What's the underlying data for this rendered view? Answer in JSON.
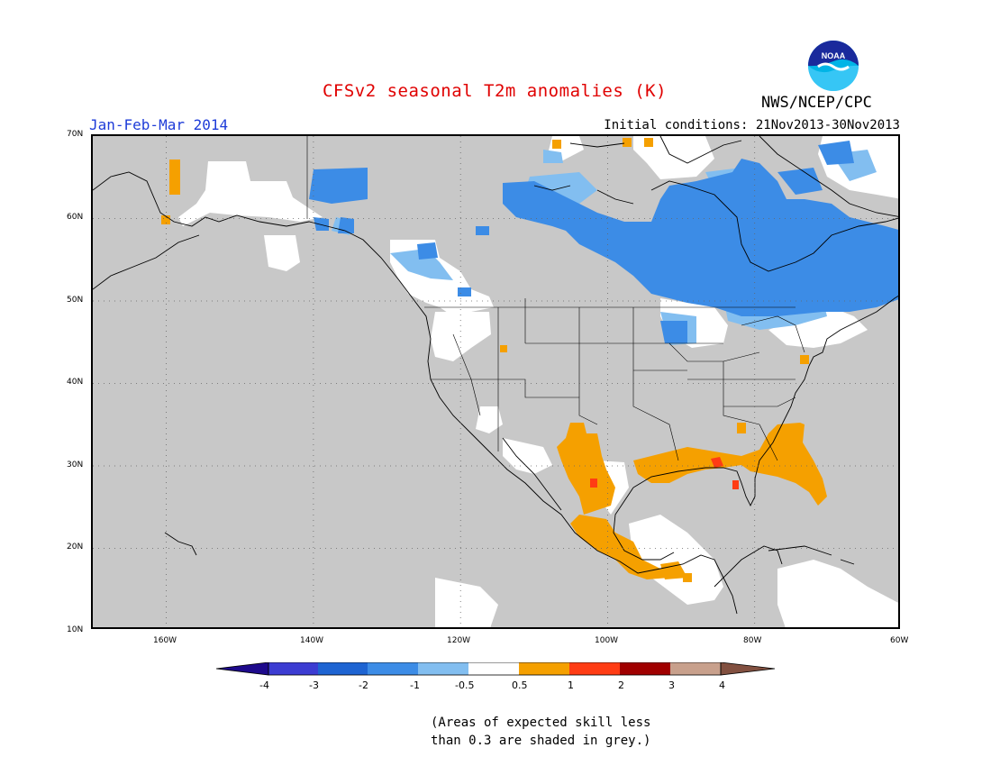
{
  "title": "CFSv2 seasonal T2m anomalies (K)",
  "period": "Jan-Feb-Mar 2014",
  "initial_conditions": "Initial conditions: 21Nov2013-30Nov2013",
  "agency": "NWS/NCEP/CPC",
  "logo_text": "NOAA",
  "map": {
    "lon_range": [
      -170,
      -60
    ],
    "lat_range": [
      10,
      70
    ],
    "lat_labels": [
      "70N",
      "60N",
      "50N",
      "40N",
      "30N",
      "20N",
      "10N"
    ],
    "lon_labels": [
      "160W",
      "140W",
      "120W",
      "100W",
      "80W",
      "60W"
    ],
    "default_shading": "grey (skill < 0.3)"
  },
  "colorbar": {
    "labels": [
      "-4",
      "-3",
      "-2",
      "-1",
      "-0.5",
      "0.5",
      "1",
      "2",
      "3",
      "4"
    ],
    "colors": [
      "#1e0a8c",
      "#3c3cd2",
      "#1e64d2",
      "#3c8ce6",
      "#82bef0",
      "#ffffff",
      "#f5a000",
      "#ff3c14",
      "#a00000",
      "#c8a08c",
      "#825040"
    ]
  },
  "note_line1": "(Areas of expected skill less",
  "note_line2": "than 0.3 are shaded in grey.)"
}
